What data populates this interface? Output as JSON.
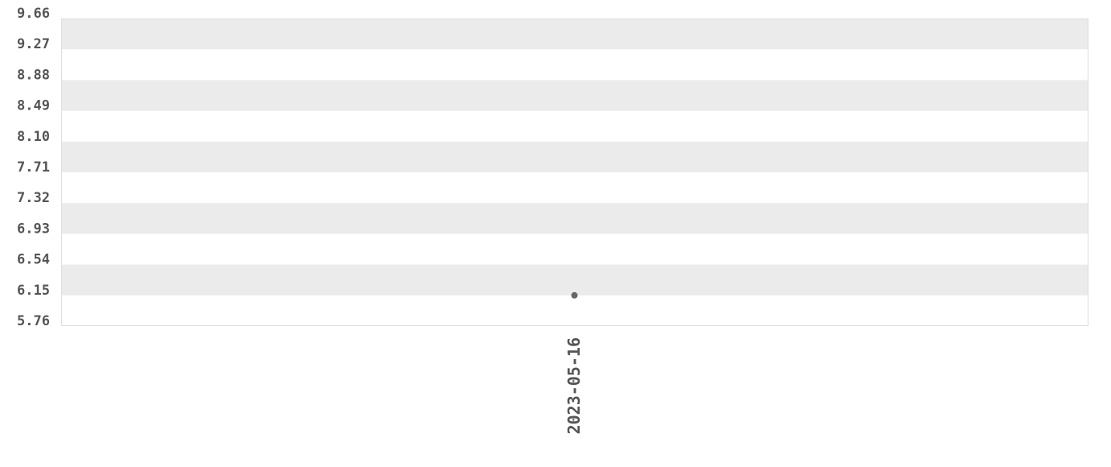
{
  "chart_data": {
    "type": "scatter",
    "title": "",
    "xlabel": "",
    "ylabel": "",
    "x_categories": [
      "2023-05-16"
    ],
    "points": [
      {
        "x": "2023-05-16",
        "y": 6.15
      }
    ],
    "ylim": [
      5.76,
      9.66
    ],
    "y_ticks": [
      "5.76",
      "6.15",
      "6.54",
      "6.93",
      "7.32",
      "7.71",
      "8.10",
      "8.49",
      "8.88",
      "9.27",
      "9.66"
    ],
    "grid": "alternating horizontal bands",
    "legend": "none",
    "colors": {
      "band": "#ebebeb",
      "point": "#666666",
      "text": "#555555",
      "border": "#dddddd"
    }
  }
}
